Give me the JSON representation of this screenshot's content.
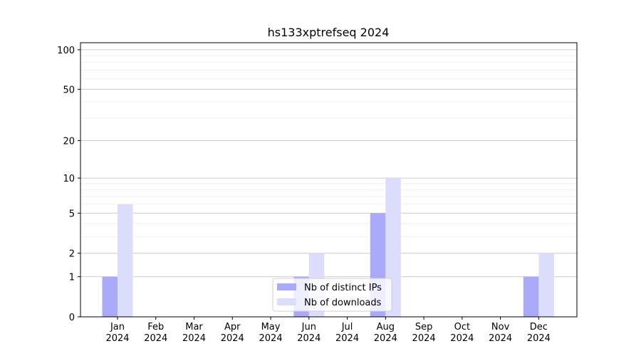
{
  "chart_data": {
    "type": "bar",
    "title": "hs133xptrefseq 2024",
    "categories": [
      "Jan\n2024",
      "Feb\n2024",
      "Mar\n2024",
      "Apr\n2024",
      "May\n2024",
      "Jun\n2024",
      "Jul\n2024",
      "Aug\n2024",
      "Sep\n2024",
      "Oct\n2024",
      "Nov\n2024",
      "Dec\n2024"
    ],
    "series": [
      {
        "name": "Nb of distinct IPs",
        "color": "#aaaaf8",
        "values": [
          1,
          0,
          0,
          0,
          0,
          1,
          0,
          5,
          0,
          0,
          0,
          1
        ]
      },
      {
        "name": "Nb of downloads",
        "color": "#dcdcfc",
        "values": [
          6,
          0,
          0,
          0,
          0,
          2,
          0,
          10,
          0,
          0,
          0,
          2
        ]
      }
    ],
    "yscale": "log1p",
    "ylim": [
      0,
      113
    ],
    "yticks": [
      0,
      1,
      2,
      5,
      10,
      20,
      50,
      100
    ],
    "minor_yticks": [
      3,
      4,
      6,
      7,
      8,
      9,
      30,
      40,
      60,
      70,
      80,
      90
    ],
    "grid": true,
    "legend": "lower center"
  }
}
